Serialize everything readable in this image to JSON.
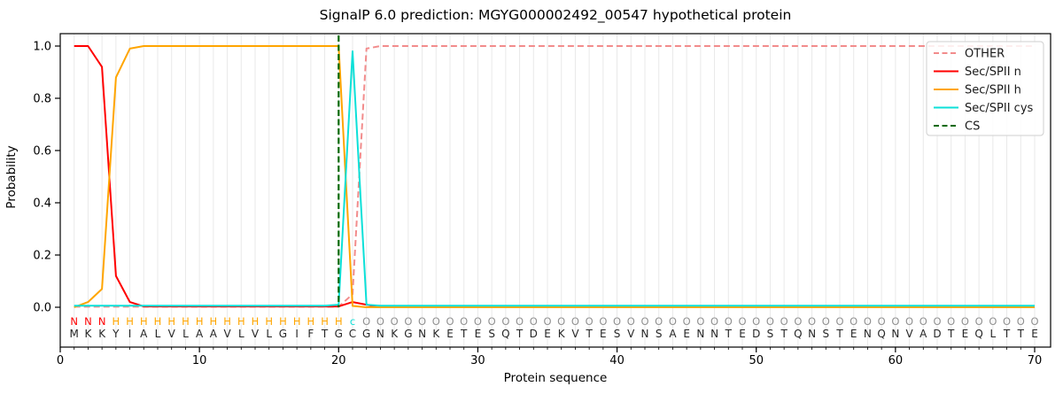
{
  "chart_data": {
    "type": "line",
    "title": "SignalP 6.0 prediction: MGYG000002492_00547 hypothetical protein",
    "xlabel": "Protein sequence",
    "ylabel": "Probability",
    "xlim": [
      0,
      71.2
    ],
    "ylim": [
      -0.15,
      1.05
    ],
    "x_ticks": [
      0,
      10,
      20,
      30,
      40,
      50,
      60,
      70
    ],
    "y_ticks": [
      0.0,
      0.2,
      0.4,
      0.6,
      0.8,
      1.0
    ],
    "grid": "vertical-per-residue",
    "legend_position": "upper-right",
    "x_start": 1,
    "series": [
      {
        "name": "OTHER",
        "key": "other",
        "color": "#F28C8C",
        "style": "dashed",
        "values": [
          0.002,
          0.002,
          0.002,
          0.002,
          0.002,
          0.002,
          0.002,
          0.002,
          0.002,
          0.002,
          0.002,
          0.002,
          0.002,
          0.002,
          0.002,
          0.002,
          0.002,
          0.002,
          0.002,
          0.002,
          0.05,
          0.99,
          1,
          1,
          1,
          1,
          1,
          1,
          1,
          1,
          1,
          1,
          1,
          1,
          1,
          1,
          1,
          1,
          1,
          1,
          1,
          1,
          1,
          1,
          1,
          1,
          1,
          1,
          1,
          1,
          1,
          1,
          1,
          1,
          1,
          1,
          1,
          1,
          1,
          1,
          1,
          1,
          1,
          1,
          1,
          1,
          1,
          1,
          1,
          1
        ]
      },
      {
        "name": "Sec/SPII n",
        "key": "n",
        "color": "#FF0000",
        "style": "solid",
        "values": [
          1,
          1,
          0.92,
          0.12,
          0.02,
          0.003,
          0.003,
          0.003,
          0.003,
          0.003,
          0.003,
          0.003,
          0.003,
          0.003,
          0.003,
          0.003,
          0.003,
          0.003,
          0.003,
          0.003,
          0.02,
          0.01,
          0,
          0,
          0,
          0,
          0,
          0,
          0,
          0,
          0,
          0,
          0,
          0,
          0,
          0,
          0,
          0,
          0,
          0,
          0,
          0,
          0,
          0,
          0,
          0,
          0,
          0,
          0,
          0,
          0,
          0,
          0,
          0,
          0,
          0,
          0,
          0,
          0,
          0,
          0,
          0,
          0,
          0,
          0,
          0,
          0,
          0,
          0,
          0
        ]
      },
      {
        "name": "Sec/SPII h",
        "key": "h",
        "color": "#FFA500",
        "style": "solid",
        "values": [
          0,
          0.02,
          0.07,
          0.88,
          0.99,
          1,
          1,
          1,
          1,
          1,
          1,
          1,
          1,
          1,
          1,
          1,
          1,
          1,
          1,
          1,
          0.005,
          0,
          0,
          0,
          0,
          0,
          0,
          0,
          0,
          0,
          0,
          0,
          0,
          0,
          0,
          0,
          0,
          0,
          0,
          0,
          0,
          0,
          0,
          0,
          0,
          0,
          0,
          0,
          0,
          0,
          0,
          0,
          0,
          0,
          0,
          0,
          0,
          0,
          0,
          0,
          0,
          0,
          0,
          0,
          0,
          0,
          0,
          0,
          0,
          0
        ]
      },
      {
        "name": "Sec/SPII cys",
        "key": "cys",
        "color": "#0CE0D8",
        "style": "solid",
        "values": [
          0.006,
          0.006,
          0.006,
          0.006,
          0.006,
          0.006,
          0.006,
          0.006,
          0.006,
          0.006,
          0.006,
          0.006,
          0.006,
          0.006,
          0.006,
          0.006,
          0.006,
          0.006,
          0.006,
          0.01,
          0.98,
          0.01,
          0.006,
          0.006,
          0.006,
          0.006,
          0.006,
          0.006,
          0.006,
          0.006,
          0.006,
          0.006,
          0.006,
          0.006,
          0.006,
          0.006,
          0.006,
          0.006,
          0.006,
          0.006,
          0.006,
          0.006,
          0.006,
          0.006,
          0.006,
          0.006,
          0.006,
          0.006,
          0.006,
          0.006,
          0.006,
          0.006,
          0.006,
          0.006,
          0.006,
          0.006,
          0.006,
          0.006,
          0.006,
          0.006,
          0.006,
          0.006,
          0.006,
          0.006,
          0.006,
          0.006,
          0.006,
          0.006,
          0.006,
          0.006
        ]
      }
    ],
    "cleavage_site": {
      "name": "CS",
      "x": 20,
      "color": "#056905",
      "style": "dashed"
    },
    "sequence": "MKKYIALVLAAVLVLGIFTGCGNKGNKETESQTDEKVTESVNSAENNTEDSTQNSTENQNVADTEQLTTE",
    "region_labels": "NNNHHHHHHHHHHHHHHHHHcOOOOOOOOOOOOOOOOOOOOOOOOOOOOOOOOOOOOOOOOOOOOOOOOO",
    "region_label_colors": {
      "N": "#FF0000",
      "H": "#FFA500",
      "c": "#0CE0D8",
      "O": "#909090"
    }
  },
  "legend": {
    "entries": [
      {
        "label": "OTHER",
        "series": "other"
      },
      {
        "label": "Sec/SPII n",
        "series": "n"
      },
      {
        "label": "Sec/SPII h",
        "series": "h"
      },
      {
        "label": "Sec/SPII cys",
        "series": "cys"
      },
      {
        "label": "CS",
        "series": "cs"
      }
    ]
  },
  "colors": {
    "grid": "#E9E9E9",
    "axis": "#000000",
    "sequence_text": "#262626",
    "legend_border": "#CFCFCF",
    "background": "#FFFFFF"
  }
}
